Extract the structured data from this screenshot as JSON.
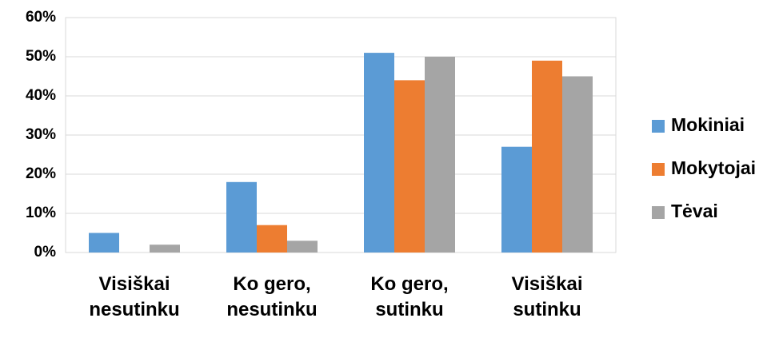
{
  "chart_data": {
    "type": "bar",
    "categories": [
      "Visiškai nesutinku",
      "Ko gero, nesutinku",
      "Ko gero, sutinku",
      "Visiškai sutinku"
    ],
    "series": [
      {
        "name": "Mokiniai",
        "color": "#5b9bd5",
        "values": [
          5,
          18,
          51,
          27
        ]
      },
      {
        "name": "Mokytojai",
        "color": "#ed7d31",
        "values": [
          0,
          7,
          44,
          49
        ]
      },
      {
        "name": "Tėvai",
        "color": "#a5a5a5",
        "values": [
          2,
          3,
          50,
          45
        ]
      }
    ],
    "ylim": [
      0,
      60
    ],
    "yticks": [
      {
        "value": 0,
        "label": "0%"
      },
      {
        "value": 10,
        "label": "10%"
      },
      {
        "value": 20,
        "label": "20%"
      },
      {
        "value": 30,
        "label": "30%"
      },
      {
        "value": 40,
        "label": "40%"
      },
      {
        "value": 50,
        "label": "50%"
      },
      {
        "value": 60,
        "label": "60%"
      }
    ],
    "grid": true,
    "legend": "right"
  }
}
